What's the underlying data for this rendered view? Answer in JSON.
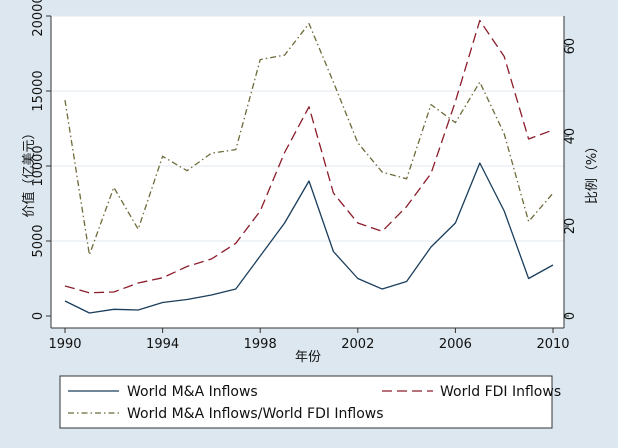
{
  "chart_data": {
    "type": "line",
    "x": [
      1990,
      1991,
      1992,
      1993,
      1994,
      1995,
      1996,
      1997,
      1998,
      1999,
      2000,
      2001,
      2002,
      2003,
      2004,
      2005,
      2006,
      2007,
      2008,
      2009,
      2010
    ],
    "xlabel": "年份",
    "ylabel_left": "价值（亿美元）",
    "ylabel_right": "比例（%）",
    "xlim": [
      1990,
      2010
    ],
    "ylim_left": [
      0,
      20000
    ],
    "ylim_right": [
      0,
      66.7
    ],
    "xticks": [
      "1990",
      "1994",
      "1998",
      "2002",
      "2006",
      "2010"
    ],
    "yticks_left": [
      "0",
      "5000",
      "10000",
      "15000",
      "20000"
    ],
    "yticks_right": [
      "0",
      "20",
      "40",
      "60"
    ],
    "grid": "horizontal",
    "legend_position": "bottom",
    "series": [
      {
        "name": "World M&A Inflows",
        "axis": "left",
        "color": "#1a3e5c",
        "style": "solid",
        "values": [
          1000,
          200,
          450,
          400,
          900,
          1100,
          1400,
          1800,
          4000,
          6200,
          9000,
          4300,
          2500,
          1800,
          2300,
          4600,
          6200,
          10200,
          7000,
          2500,
          3400
        ]
      },
      {
        "name": "World FDI Inflows",
        "axis": "left",
        "color": "#8b1c2b",
        "style": "dash",
        "values": [
          2000,
          1550,
          1600,
          2200,
          2550,
          3300,
          3800,
          4850,
          7000,
          10900,
          13950,
          8200,
          6200,
          5650,
          7300,
          9500,
          14300,
          19700,
          17300,
          11800,
          12400
        ]
      },
      {
        "name": "World M&A Inflows/World FDI Inflows",
        "axis": "right",
        "color": "#6e6a3a",
        "style": "dashdot",
        "values": [
          48,
          13.6,
          28.6,
          19.3,
          35.5,
          32.3,
          36.2,
          37,
          57,
          58,
          65,
          52,
          38.5,
          32,
          30.5,
          47,
          43,
          52,
          40.5,
          21,
          27.3
        ]
      }
    ]
  }
}
